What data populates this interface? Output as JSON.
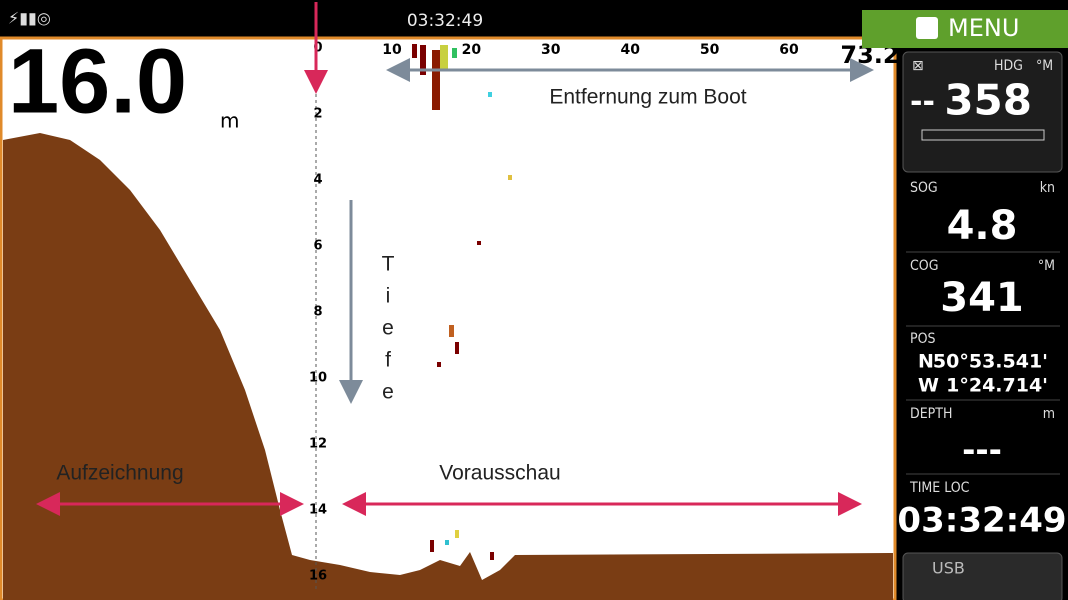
{
  "status_bar": {
    "time": "03:32:49"
  },
  "menu": {
    "label": "MENU"
  },
  "depth_readout": {
    "value": "16.0",
    "unit": "m"
  },
  "range_scale": {
    "ticks": [
      "10",
      "20",
      "30",
      "40",
      "50",
      "60"
    ],
    "max": "73.2"
  },
  "depth_scale": {
    "ticks": [
      "0",
      "2",
      "4",
      "6",
      "8",
      "10",
      "12",
      "14",
      "16"
    ]
  },
  "annotations": {
    "distance": "Entfernung zum Boot",
    "depth": [
      "T",
      "i",
      "e",
      "f",
      "e"
    ],
    "history": "Aufzeichnung",
    "forward": "Vorausschau"
  },
  "panel": {
    "heading": {
      "label": "HDG",
      "unit": "°M",
      "left": "--",
      "value": "358"
    },
    "sog": {
      "label": "SOG",
      "unit": "kn",
      "value": "4.8"
    },
    "cog": {
      "label": "COG",
      "unit": "°M",
      "value": "341"
    },
    "pos": {
      "label": "POS",
      "lat_hemi": "N",
      "lat": "50°53.541'",
      "lon_hemi": "W",
      "lon": "1°24.714'"
    },
    "depth": {
      "label": "DEPTH",
      "unit": "m",
      "value": "---"
    },
    "time": {
      "label": "TIME LOC",
      "value": "03:32:49"
    },
    "usb": {
      "label": "USB"
    }
  }
}
